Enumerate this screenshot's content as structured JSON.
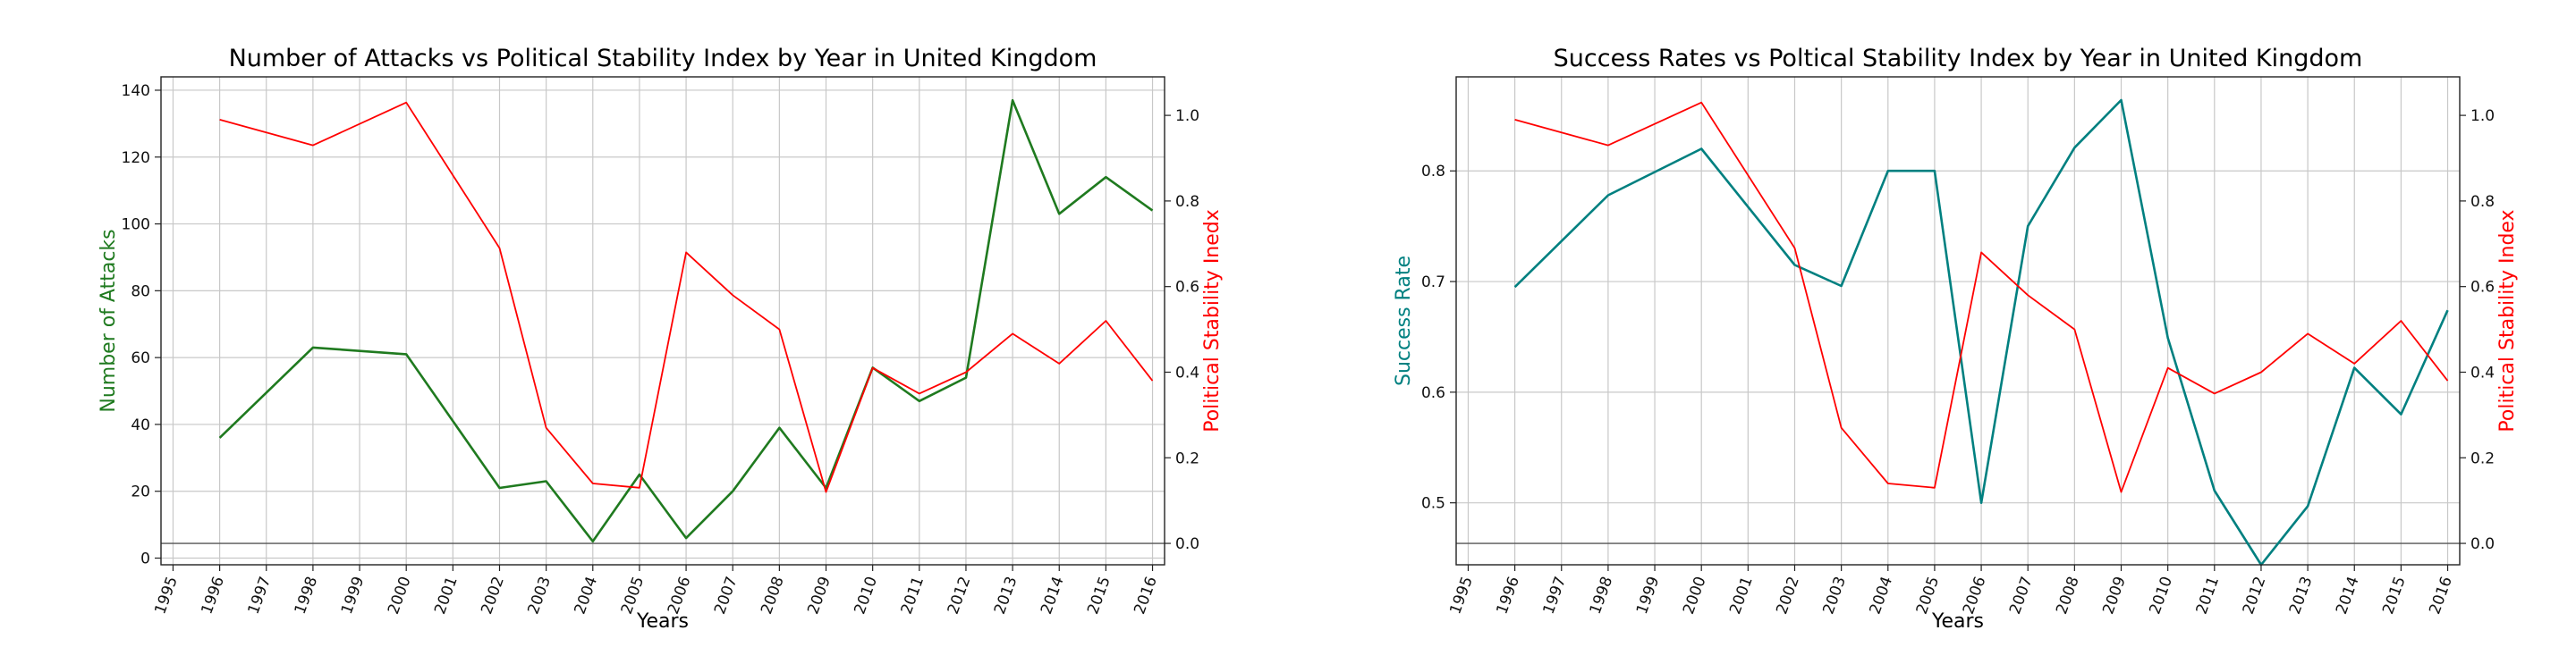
{
  "chart_data": [
    {
      "type": "line",
      "title": "Number of Attacks vs Political Stability Index by Year in United Kingdom",
      "xlabel": "Years",
      "ylabel_left": "Number of Attacks",
      "ylabel_right": "Political Stability Inedx",
      "x": [
        "1995",
        "1996",
        "1997",
        "1998",
        "1999",
        "2000",
        "2001",
        "2002",
        "2003",
        "2004",
        "2005",
        "2006",
        "2007",
        "2008",
        "2009",
        "2010",
        "2011",
        "2012",
        "2013",
        "2014",
        "2015",
        "2016"
      ],
      "ylim_left": [
        -2,
        144
      ],
      "ylim_right": [
        -0.05,
        1.09
      ],
      "yticks_left": [
        "0",
        "20",
        "40",
        "60",
        "80",
        "100",
        "120",
        "140"
      ],
      "yticks_right": [
        "0.0",
        "0.2",
        "0.4",
        "0.6",
        "0.8",
        "1.0"
      ],
      "grid": true,
      "baseline_right": 0,
      "series": [
        {
          "axis": "left",
          "color": "#1f7a1f",
          "points": [
            [
              1996,
              36
            ],
            [
              1998,
              63
            ],
            [
              2000,
              61
            ],
            [
              2002,
              21
            ],
            [
              2003,
              23
            ],
            [
              2004,
              5
            ],
            [
              2005,
              25
            ],
            [
              2006,
              6
            ],
            [
              2007,
              20
            ],
            [
              2008,
              39
            ],
            [
              2009,
              21
            ],
            [
              2010,
              57
            ],
            [
              2011,
              47
            ],
            [
              2012,
              54
            ],
            [
              2013,
              137
            ],
            [
              2014,
              103
            ],
            [
              2015,
              114
            ],
            [
              2016,
              104
            ]
          ]
        },
        {
          "axis": "right",
          "color": "#ff0000",
          "points": [
            [
              1996,
              0.99
            ],
            [
              1998,
              0.93
            ],
            [
              2000,
              1.03
            ],
            [
              2002,
              0.69
            ],
            [
              2003,
              0.27
            ],
            [
              2004,
              0.14
            ],
            [
              2005,
              0.13
            ],
            [
              2006,
              0.68
            ],
            [
              2007,
              0.58
            ],
            [
              2008,
              0.5
            ],
            [
              2009,
              0.12
            ],
            [
              2010,
              0.41
            ],
            [
              2011,
              0.35
            ],
            [
              2012,
              0.4
            ],
            [
              2013,
              0.49
            ],
            [
              2014,
              0.42
            ],
            [
              2015,
              0.52
            ],
            [
              2016,
              0.38
            ]
          ]
        }
      ]
    },
    {
      "type": "line",
      "title": "Success Rates vs Poltical Stability Index by Year in United Kingdom",
      "xlabel": "Years",
      "ylabel_left": "Success Rate",
      "ylabel_right": "Political Stability Index",
      "x": [
        "1995",
        "1996",
        "1997",
        "1998",
        "1999",
        "2000",
        "2001",
        "2002",
        "2003",
        "2004",
        "2005",
        "2006",
        "2007",
        "2008",
        "2009",
        "2010",
        "2011",
        "2012",
        "2013",
        "2014",
        "2015",
        "2016"
      ],
      "ylim_left": [
        0.444,
        0.885
      ],
      "ylim_right": [
        -0.05,
        1.09
      ],
      "yticks_left": [
        "0.5",
        "0.6",
        "0.7",
        "0.8"
      ],
      "yticks_right": [
        "0.0",
        "0.2",
        "0.4",
        "0.6",
        "0.8",
        "1.0"
      ],
      "grid": true,
      "baseline_right": 0,
      "series": [
        {
          "axis": "left",
          "color": "#008080",
          "points": [
            [
              1996,
              0.695
            ],
            [
              1998,
              0.778
            ],
            [
              2000,
              0.82
            ],
            [
              2002,
              0.715
            ],
            [
              2003,
              0.696
            ],
            [
              2004,
              0.8
            ],
            [
              2005,
              0.8
            ],
            [
              2006,
              0.5
            ],
            [
              2007,
              0.75
            ],
            [
              2008,
              0.821
            ],
            [
              2009,
              0.864
            ],
            [
              2010,
              0.649
            ],
            [
              2011,
              0.511
            ],
            [
              2012,
              0.444
            ],
            [
              2013,
              0.497
            ],
            [
              2014,
              0.622
            ],
            [
              2015,
              0.58
            ],
            [
              2016,
              0.674
            ]
          ]
        },
        {
          "axis": "right",
          "color": "#ff0000",
          "points": [
            [
              1996,
              0.99
            ],
            [
              1998,
              0.93
            ],
            [
              2000,
              1.03
            ],
            [
              2002,
              0.69
            ],
            [
              2003,
              0.27
            ],
            [
              2004,
              0.14
            ],
            [
              2005,
              0.13
            ],
            [
              2006,
              0.68
            ],
            [
              2007,
              0.58
            ],
            [
              2008,
              0.5
            ],
            [
              2009,
              0.12
            ],
            [
              2010,
              0.41
            ],
            [
              2011,
              0.35
            ],
            [
              2012,
              0.4
            ],
            [
              2013,
              0.49
            ],
            [
              2014,
              0.42
            ],
            [
              2015,
              0.52
            ],
            [
              2016,
              0.38
            ]
          ]
        }
      ]
    }
  ]
}
